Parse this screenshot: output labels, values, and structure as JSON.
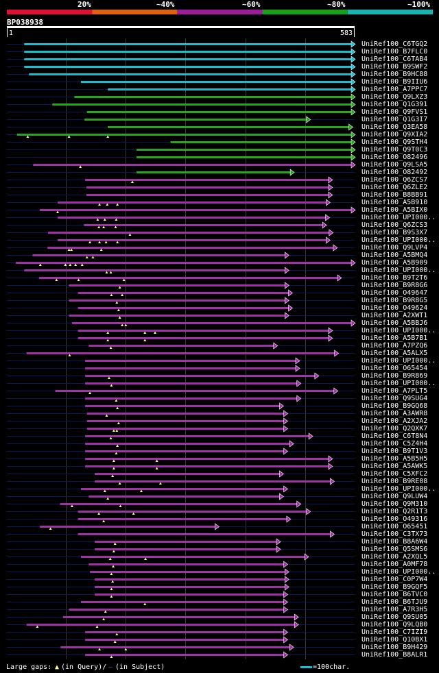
{
  "query_id": "BP038938",
  "colors": {
    "bins": [
      "#e01030",
      "#e06010",
      "#9a1e9a",
      "#18a018",
      "#18b4b4"
    ],
    "cyan": "#1ebcd0",
    "green": "#2aa61e",
    "purple": "#a032a8",
    "gap": "#ffff88",
    "dash": "#0a1a55",
    "grid": "#3a3a3a",
    "ruler": "#ffffff"
  },
  "chart_data": {
    "type": "alignment-overview",
    "query_length": 583,
    "axis_start_label": "1",
    "axis_end_label": "583",
    "identity_bins": [
      {
        "label": "20%",
        "color": "#e01030"
      },
      {
        "label": "~40%",
        "color": "#e06010"
      },
      {
        "label": "~60%",
        "color": "#9a1e9a"
      },
      {
        "label": "~80%",
        "color": "#18a018"
      },
      {
        "label": "~100%",
        "color": "#18b4b4"
      }
    ],
    "gridlines": [
      100,
      200,
      300,
      400,
      500
    ],
    "hits": [
      {
        "name": "UniRef100_C6TGQ2",
        "bin": 4,
        "start": 30,
        "end": 583,
        "gaps": []
      },
      {
        "name": "UniRef100_B7FLC0",
        "bin": 4,
        "start": 30,
        "end": 583,
        "gaps": []
      },
      {
        "name": "UniRef100_C6TAB4",
        "bin": 4,
        "start": 30,
        "end": 583,
        "gaps": []
      },
      {
        "name": "UniRef100_B9SWF2",
        "bin": 4,
        "start": 30,
        "end": 583,
        "gaps": []
      },
      {
        "name": "UniRef100_B9HC88",
        "bin": 4,
        "start": 38,
        "end": 583,
        "gaps": []
      },
      {
        "name": "UniRef100_B9IIU6",
        "bin": 4,
        "start": 125,
        "end": 583,
        "gaps": []
      },
      {
        "name": "UniRef100_A7PPC7",
        "bin": 4,
        "start": 170,
        "end": 583,
        "gaps": []
      },
      {
        "name": "UniRef100_Q9LXZ3",
        "bin": 3,
        "start": 114,
        "end": 583,
        "gaps": []
      },
      {
        "name": "UniRef100_Q1G391",
        "bin": 3,
        "start": 77,
        "end": 583,
        "gaps": []
      },
      {
        "name": "UniRef100_Q9FVS1",
        "bin": 3,
        "start": 135,
        "end": 583,
        "gaps": []
      },
      {
        "name": "UniRef100_Q1G3I7",
        "bin": 3,
        "start": 131,
        "end": 508,
        "gaps": []
      },
      {
        "name": "UniRef100_Q3EA58",
        "bin": 3,
        "start": 170,
        "end": 579,
        "gaps": []
      },
      {
        "name": "UniRef100_Q9XIA2",
        "bin": 3,
        "start": 18,
        "end": 583,
        "gaps": [
          36,
          105,
          170
        ]
      },
      {
        "name": "UniRef100_Q9STH4",
        "bin": 3,
        "start": 275,
        "end": 583,
        "gaps": []
      },
      {
        "name": "UniRef100_Q9T0C3",
        "bin": 3,
        "start": 218,
        "end": 583,
        "gaps": []
      },
      {
        "name": "UniRef100_O82496",
        "bin": 3,
        "start": 218,
        "end": 583,
        "gaps": []
      },
      {
        "name": "UniRef100_Q9LSA5",
        "bin": 2,
        "start": 45,
        "end": 583,
        "gaps": [
          124
        ]
      },
      {
        "name": "UniRef100_O82492",
        "bin": 3,
        "start": 218,
        "end": 481,
        "gaps": []
      },
      {
        "name": "UniRef100_Q6ZCS7",
        "bin": 2,
        "start": 132,
        "end": 545,
        "gaps": [
          211
        ]
      },
      {
        "name": "UniRef100_Q6ZLE2",
        "bin": 2,
        "start": 134,
        "end": 545,
        "gaps": []
      },
      {
        "name": "UniRef100_B8BB91",
        "bin": 2,
        "start": 134,
        "end": 545,
        "gaps": []
      },
      {
        "name": "UniRef100_A5B910",
        "bin": 2,
        "start": 86,
        "end": 541,
        "gaps": [
          156,
          169,
          186
        ]
      },
      {
        "name": "UniRef100_A5BIX0",
        "bin": 2,
        "start": 56,
        "end": 583,
        "gaps": [
          86
        ]
      },
      {
        "name": "UniRef100_UPI000..",
        "bin": 2,
        "start": 86,
        "end": 540,
        "gaps": [
          153,
          165,
          184
        ]
      },
      {
        "name": "UniRef100_Q6ZCS3",
        "bin": 2,
        "start": 130,
        "end": 535,
        "gaps": [
          155,
          163,
          183
        ]
      },
      {
        "name": "UniRef100_B9S3X7",
        "bin": 2,
        "start": 70,
        "end": 546,
        "gaps": [
          207
        ]
      },
      {
        "name": "UniRef100_UPI000..",
        "bin": 2,
        "start": 86,
        "end": 541,
        "gaps": [
          140,
          156,
          167,
          186
        ]
      },
      {
        "name": "UniRef100_Q9LVP4",
        "bin": 2,
        "start": 69,
        "end": 553,
        "gaps": [
          105,
          109,
          159
        ]
      },
      {
        "name": "UniRef100_A5BMQ4",
        "bin": 2,
        "start": 44,
        "end": 472,
        "gaps": [
          135,
          145
        ]
      },
      {
        "name": "UniRef100_A5B909",
        "bin": 2,
        "start": 16,
        "end": 583,
        "gaps": [
          57,
          99,
          107,
          116,
          127
        ]
      },
      {
        "name": "UniRef100_UPI000..",
        "bin": 2,
        "start": 30,
        "end": 472,
        "gaps": [
          168,
          175
        ]
      },
      {
        "name": "UniRef100_B9T2T6",
        "bin": 2,
        "start": 55,
        "end": 560,
        "gaps": [
          84,
          121,
          197
        ]
      },
      {
        "name": "UniRef100_B9R8G6",
        "bin": 2,
        "start": 105,
        "end": 472,
        "gaps": [
          190
        ]
      },
      {
        "name": "UniRef100_O49647",
        "bin": 2,
        "start": 120,
        "end": 478,
        "gaps": [
          176,
          194
        ]
      },
      {
        "name": "UniRef100_B9R8G5",
        "bin": 2,
        "start": 105,
        "end": 472,
        "gaps": [
          185
        ]
      },
      {
        "name": "UniRef100_O49624",
        "bin": 2,
        "start": 120,
        "end": 478,
        "gaps": [
          188
        ]
      },
      {
        "name": "UniRef100_A2XWT1",
        "bin": 2,
        "start": 105,
        "end": 472,
        "gaps": [
          190
        ]
      },
      {
        "name": "UniRef100_A5BBJ6",
        "bin": 2,
        "start": 110,
        "end": 583,
        "gaps": [
          194,
          200
        ]
      },
      {
        "name": "UniRef100_UPI000..",
        "bin": 2,
        "start": 120,
        "end": 545,
        "gaps": [
          170,
          232,
          249
        ]
      },
      {
        "name": "UniRef100_A5B7B1",
        "bin": 2,
        "start": 120,
        "end": 545,
        "gaps": [
          170,
          232
        ]
      },
      {
        "name": "UniRef100_A7PZQ6",
        "bin": 2,
        "start": 138,
        "end": 453,
        "gaps": [
          175
        ]
      },
      {
        "name": "UniRef100_A5ALX5",
        "bin": 2,
        "start": 34,
        "end": 555,
        "gaps": [
          106
        ]
      },
      {
        "name": "UniRef100_UPI000..",
        "bin": 2,
        "start": 132,
        "end": 490,
        "gaps": []
      },
      {
        "name": "UniRef100_O65454",
        "bin": 2,
        "start": 132,
        "end": 490,
        "gaps": []
      },
      {
        "name": "UniRef100_B9R869",
        "bin": 2,
        "start": 132,
        "end": 522,
        "gaps": [
          172
        ]
      },
      {
        "name": "UniRef100_UPI000..",
        "bin": 2,
        "start": 132,
        "end": 492,
        "gaps": [
          176
        ]
      },
      {
        "name": "UniRef100_A7PLT5",
        "bin": 2,
        "start": 82,
        "end": 554,
        "gaps": [
          140
        ]
      },
      {
        "name": "UniRef100_Q9SUG4",
        "bin": 2,
        "start": 132,
        "end": 492,
        "gaps": [
          184
        ]
      },
      {
        "name": "UniRef100_B9GQ68",
        "bin": 2,
        "start": 132,
        "end": 463,
        "gaps": [
          186
        ]
      },
      {
        "name": "UniRef100_A3AWR8",
        "bin": 2,
        "start": 135,
        "end": 470,
        "gaps": [
          168
        ]
      },
      {
        "name": "UniRef100_A2XJA2",
        "bin": 2,
        "start": 135,
        "end": 470,
        "gaps": [
          188
        ]
      },
      {
        "name": "UniRef100_Q2QXK7",
        "bin": 2,
        "start": 135,
        "end": 470,
        "gaps": [
          180,
          185
        ]
      },
      {
        "name": "UniRef100_C6T8N4",
        "bin": 2,
        "start": 132,
        "end": 512,
        "gaps": [
          175
        ]
      },
      {
        "name": "UniRef100_C5Z4H4",
        "bin": 2,
        "start": 132,
        "end": 480,
        "gaps": [
          186
        ]
      },
      {
        "name": "UniRef100_B9T1V3",
        "bin": 2,
        "start": 132,
        "end": 470,
        "gaps": [
          184
        ]
      },
      {
        "name": "UniRef100_A5B5H5",
        "bin": 2,
        "start": 132,
        "end": 545,
        "gaps": [
          180,
          252
        ]
      },
      {
        "name": "UniRef100_A5AWK5",
        "bin": 2,
        "start": 132,
        "end": 545,
        "gaps": [
          180,
          252
        ]
      },
      {
        "name": "UniRef100_C5XFC2",
        "bin": 2,
        "start": 148,
        "end": 463,
        "gaps": [
          178
        ]
      },
      {
        "name": "UniRef100_B9RE08",
        "bin": 2,
        "start": 148,
        "end": 548,
        "gaps": [
          190,
          258
        ]
      },
      {
        "name": "UniRef100_UPI000..",
        "bin": 2,
        "start": 125,
        "end": 470,
        "gaps": [
          165,
          226
        ]
      },
      {
        "name": "UniRef100_Q9LUW4",
        "bin": 2,
        "start": 138,
        "end": 463,
        "gaps": [
          170
        ]
      },
      {
        "name": "UniRef100_Q9M310",
        "bin": 2,
        "start": 90,
        "end": 492,
        "gaps": [
          110,
          191
        ]
      },
      {
        "name": "UniRef100_Q2R1T3",
        "bin": 2,
        "start": 120,
        "end": 508,
        "gaps": [
          155,
          213
        ]
      },
      {
        "name": "UniRef100_O49316",
        "bin": 2,
        "start": 120,
        "end": 475,
        "gaps": [
          163
        ]
      },
      {
        "name": "UniRef100_O65451",
        "bin": 2,
        "start": 56,
        "end": 355,
        "gaps": [
          74
        ]
      },
      {
        "name": "UniRef100_C3TX73",
        "bin": 2,
        "start": 120,
        "end": 548,
        "gaps": []
      },
      {
        "name": "UniRef100_B8A6W4",
        "bin": 2,
        "start": 148,
        "end": 458,
        "gaps": [
          182
        ]
      },
      {
        "name": "UniRef100_Q5SMS6",
        "bin": 2,
        "start": 148,
        "end": 458,
        "gaps": [
          180
        ]
      },
      {
        "name": "UniRef100_A2XQL5",
        "bin": 2,
        "start": 125,
        "end": 505,
        "gaps": [
          174,
          233
        ]
      },
      {
        "name": "UniRef100_A0MF78",
        "bin": 2,
        "start": 138,
        "end": 470,
        "gaps": [
          179
        ]
      },
      {
        "name": "UniRef100_UPI000..",
        "bin": 2,
        "start": 140,
        "end": 472,
        "gaps": [
          176
        ]
      },
      {
        "name": "UniRef100_C0P7W4",
        "bin": 2,
        "start": 148,
        "end": 472,
        "gaps": [
          178
        ]
      },
      {
        "name": "UniRef100_B9GQF5",
        "bin": 2,
        "start": 148,
        "end": 472,
        "gaps": [
          176
        ]
      },
      {
        "name": "UniRef100_B6TVC0",
        "bin": 2,
        "start": 148,
        "end": 470,
        "gaps": [
          176
        ]
      },
      {
        "name": "UniRef100_B6TJU9",
        "bin": 2,
        "start": 125,
        "end": 470,
        "gaps": [
          232
        ]
      },
      {
        "name": "UniRef100_A7R3H5",
        "bin": 2,
        "start": 105,
        "end": 470,
        "gaps": [
          166
        ]
      },
      {
        "name": "UniRef100_Q9SU05",
        "bin": 2,
        "start": 95,
        "end": 488,
        "gaps": [
          163
        ]
      },
      {
        "name": "UniRef100_Q9LQB0",
        "bin": 2,
        "start": 34,
        "end": 488,
        "gaps": [
          52,
          152
        ]
      },
      {
        "name": "UniRef100_C7IZI9",
        "bin": 2,
        "start": 132,
        "end": 470,
        "gaps": [
          185
        ]
      },
      {
        "name": "UniRef100_Q10BX1",
        "bin": 2,
        "start": 132,
        "end": 470,
        "gaps": [
          182
        ]
      },
      {
        "name": "UniRef100_B9H429",
        "bin": 2,
        "start": 91,
        "end": 480,
        "gaps": [
          156,
          200
        ]
      },
      {
        "name": "UniRef100_B8ALR1",
        "bin": 2,
        "start": 132,
        "end": 470,
        "gaps": [
          176
        ]
      }
    ]
  },
  "footer": {
    "gaps_label": "Large gaps:",
    "gaps_query": "(in Query)/",
    "gaps_subject": "(in Subject)",
    "scale_label": "=100char."
  }
}
